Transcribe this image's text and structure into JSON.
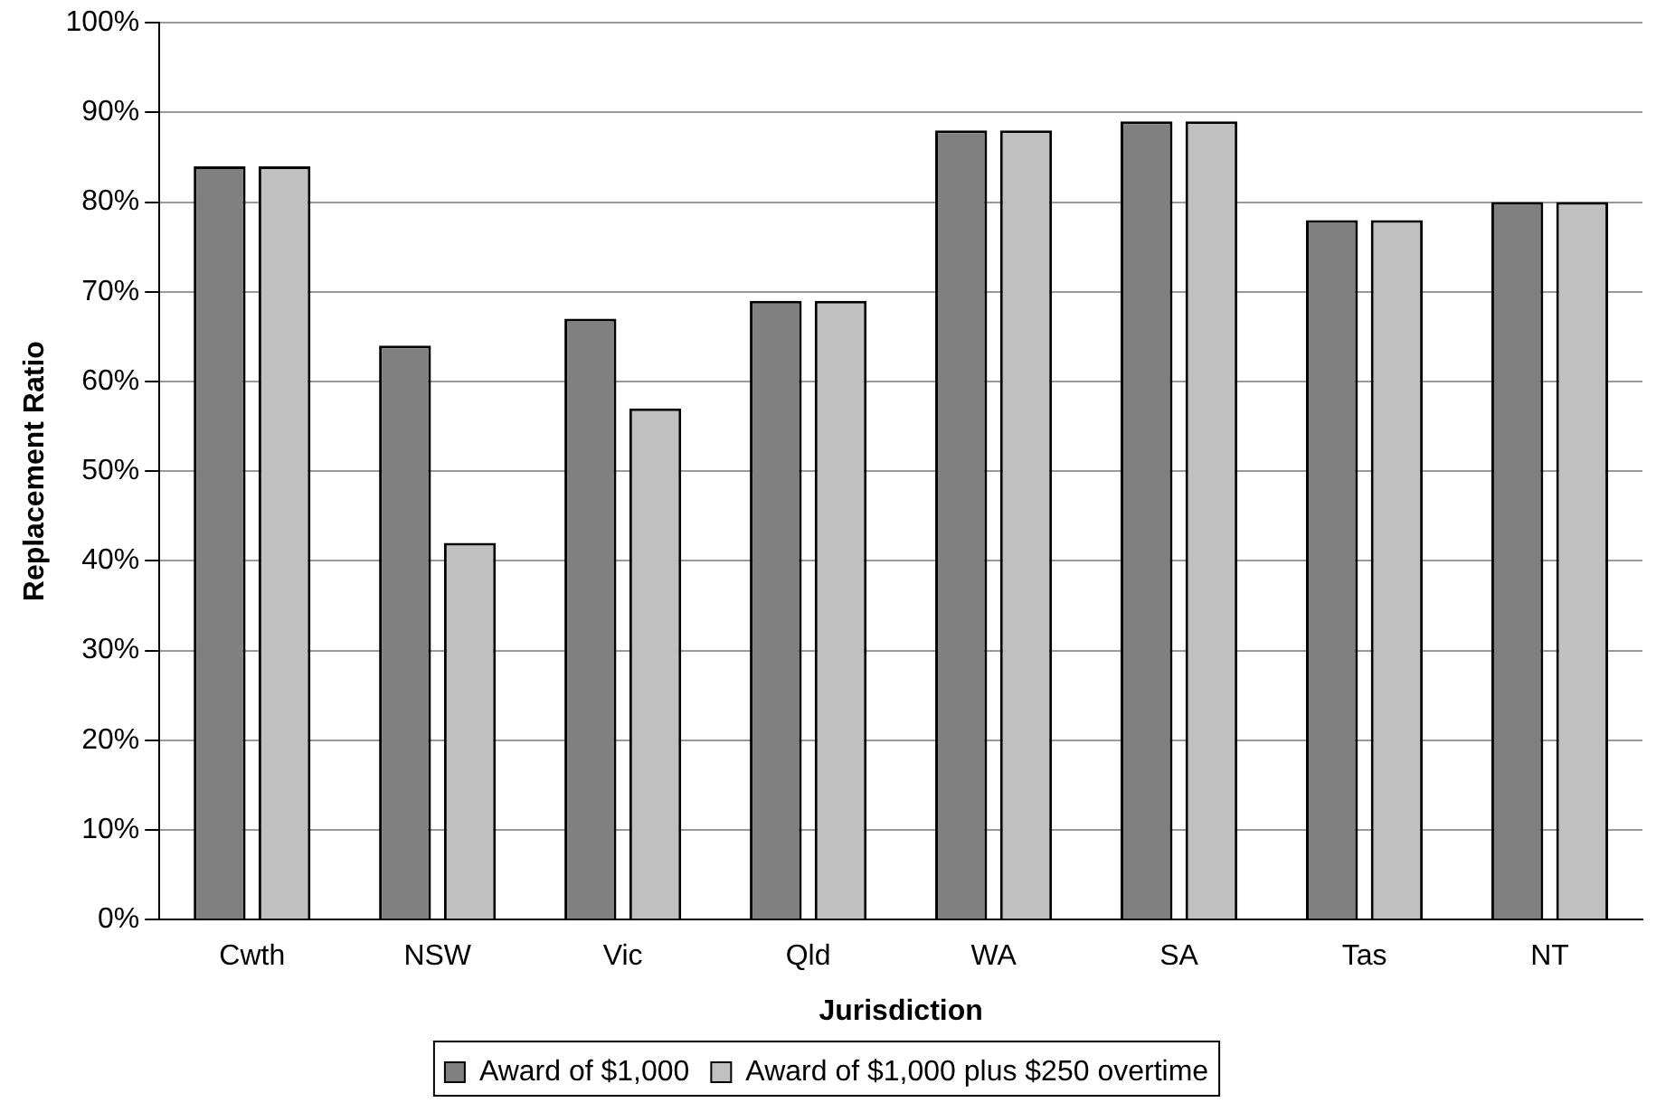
{
  "chart_data": {
    "type": "bar",
    "xlabel": "Jurisdiction",
    "ylabel": "Replacement Ratio",
    "categories": [
      "Cwth",
      "NSW",
      "Vic",
      "Qld",
      "WA",
      "SA",
      "Tas",
      "NT"
    ],
    "series": [
      {
        "name": "Award of $1,000",
        "color": "#808080",
        "values": [
          84,
          64,
          67,
          69,
          88,
          89,
          78,
          80
        ]
      },
      {
        "name": "Award of $1,000 plus $250 overtime",
        "color": "#c0c0c0",
        "values": [
          84,
          42,
          57,
          69,
          88,
          89,
          78,
          80
        ]
      }
    ],
    "ylim": [
      0,
      100
    ],
    "yticks": [
      {
        "value": 0,
        "label": "0%"
      },
      {
        "value": 10,
        "label": "10%"
      },
      {
        "value": 20,
        "label": "20%"
      },
      {
        "value": 30,
        "label": "30%"
      },
      {
        "value": 40,
        "label": "40%"
      },
      {
        "value": 50,
        "label": "50%"
      },
      {
        "value": 60,
        "label": "60%"
      },
      {
        "value": 70,
        "label": "70%"
      },
      {
        "value": 80,
        "label": "80%"
      },
      {
        "value": 90,
        "label": "90%"
      },
      {
        "value": 100,
        "label": "100%"
      }
    ],
    "grid": "y",
    "legend": "bottom"
  }
}
